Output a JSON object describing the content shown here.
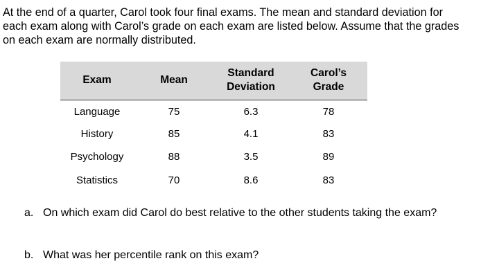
{
  "intro": "At the end of a quarter, Carol took four final exams. The mean and standard deviation for each exam along with Carol’s grade on each exam are listed below. Assume that the grades on each exam are normally distributed.",
  "table": {
    "header": [
      "Exam",
      "Mean",
      "Standard Deviation",
      "Carol’s Grade"
    ],
    "rows": [
      [
        "Language",
        "75",
        "6.3",
        "78"
      ],
      [
        "History",
        "85",
        "4.1",
        "83"
      ],
      [
        "Psychology",
        "88",
        "3.5",
        "89"
      ],
      [
        "Statistics",
        "70",
        "8.6",
        "83"
      ]
    ]
  },
  "questions": [
    {
      "marker": "a.",
      "text": "On which exam did Carol do best relative to the other students taking the exam?"
    },
    {
      "marker": "b.",
      "text": "What was her percentile rank on this exam?"
    }
  ]
}
